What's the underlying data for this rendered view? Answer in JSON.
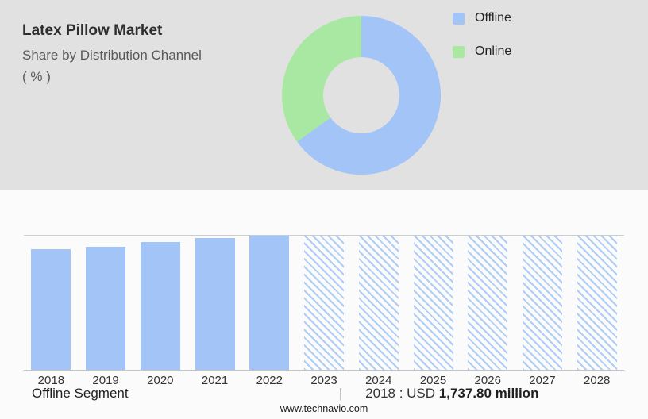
{
  "header": {
    "title": "Latex Pillow Market",
    "subtitle": "Share by Distribution Channel",
    "unit": "( % )"
  },
  "footer": {
    "segment_label": "Offline Segment",
    "separator": "|",
    "value_prefix": "2018 : USD",
    "value_bold": "1,737.80 million",
    "site": "www.technavio.com"
  },
  "chart_data": [
    {
      "type": "pie",
      "donut": true,
      "title": "Latex Pillow Market - Share by Distribution Channel (%)",
      "labels": [
        "Offline",
        "Online"
      ],
      "values": [
        65,
        35
      ],
      "colors": [
        "#a2c4f7",
        "#a9e8a2"
      ],
      "legend_position": "right",
      "hole_color": "#e1e1e1"
    },
    {
      "type": "bar",
      "categories": [
        "2018",
        "2019",
        "2020",
        "2021",
        "2022",
        "2023",
        "2024",
        "2025",
        "2026",
        "2027",
        "2028"
      ],
      "values_relative_pct": [
        90,
        92,
        95,
        98,
        100,
        100,
        100,
        100,
        100,
        100,
        100
      ],
      "known_values": {
        "2018": "USD 1,737.80 million"
      },
      "forecast_years": [
        "2023",
        "2024",
        "2025",
        "2026",
        "2027",
        "2028"
      ],
      "series_label": "Offline Segment",
      "bar_color": "#a2c4f7",
      "hatch_line_color": "#aecdf6",
      "style_note": "solid bars 2018-2022, diagonal-hatched forecast bars 2023-2028",
      "xlabel": "",
      "ylabel": "",
      "grid": false
    }
  ]
}
